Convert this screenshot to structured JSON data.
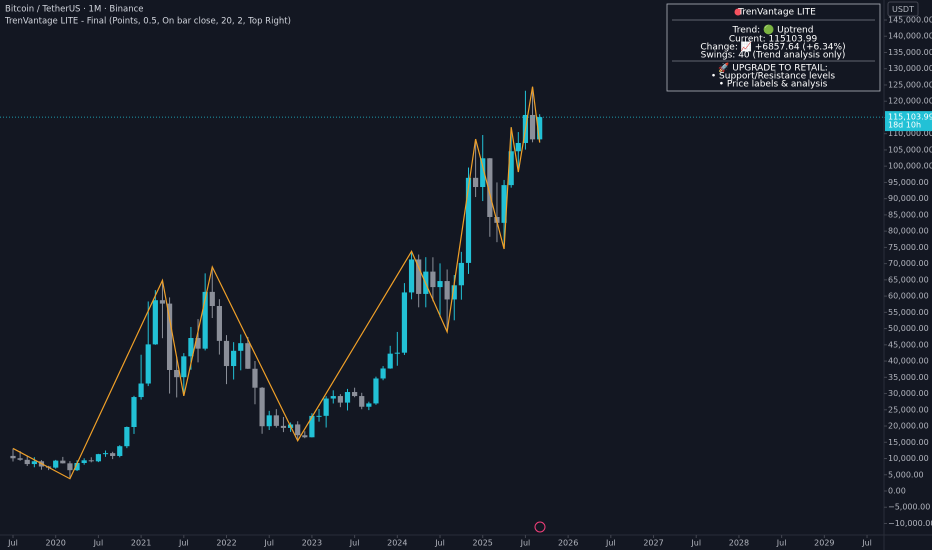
{
  "header": {
    "symbol": "Bitcoin / TetherUS · 1M · Binance",
    "indicator": "TrenVantage LITE - Final (Points, 0.5, On bar close, 20, 2, Top Right)"
  },
  "panel": {
    "title": "TrenVantage LITE",
    "trend": "Trend: 🟢 Uptrend",
    "current": "Current: 115103.99",
    "change": "Change: 📈 +6857.64 (+6.34%)",
    "swings": "Swings: 40 (Trend analysis only)",
    "upgrade": "🚀 UPGRADE TO RETAIL:",
    "feature1": "• Support/Resistance levels",
    "feature2": "• Price labels & analysis"
  },
  "chart_data": {
    "type": "candlestick",
    "currency": "USDT",
    "up_color": "#22c1d6",
    "down_color": "#8b8f99",
    "x": [
      "2019-07",
      "2019-08",
      "2019-09",
      "2019-10",
      "2019-11",
      "2019-12",
      "2020-01",
      "2020-02",
      "2020-03",
      "2020-04",
      "2020-05",
      "2020-06",
      "2020-07",
      "2020-08",
      "2020-09",
      "2020-10",
      "2020-11",
      "2020-12",
      "2021-01",
      "2021-02",
      "2021-03",
      "2021-04",
      "2021-05",
      "2021-06",
      "2021-07",
      "2021-08",
      "2021-09",
      "2021-10",
      "2021-11",
      "2021-12",
      "2022-01",
      "2022-02",
      "2022-03",
      "2022-04",
      "2022-05",
      "2022-06",
      "2022-07",
      "2022-08",
      "2022-09",
      "2022-10",
      "2022-11",
      "2022-12",
      "2023-01",
      "2023-02",
      "2023-03",
      "2023-04",
      "2023-05",
      "2023-06",
      "2023-07",
      "2023-08",
      "2023-09",
      "2023-10",
      "2023-11",
      "2023-12",
      "2024-01",
      "2024-02",
      "2024-03",
      "2024-04",
      "2024-05",
      "2024-06",
      "2024-07",
      "2024-08",
      "2024-09",
      "2024-10",
      "2024-11",
      "2024-12",
      "2025-01",
      "2025-02",
      "2025-03",
      "2025-04",
      "2025-05",
      "2025-06",
      "2025-07",
      "2025-08",
      "2025-09"
    ],
    "open": [
      10800,
      10080,
      9600,
      8290,
      9150,
      7540,
      7190,
      9350,
      8520,
      6410,
      8620,
      9450,
      9140,
      11350,
      11650,
      10780,
      13790,
      19700,
      28920,
      33090,
      45140,
      58740,
      57690,
      37250,
      35040,
      41460,
      47100,
      43820,
      61300,
      56950,
      46210,
      38470,
      43160,
      45510,
      37630,
      31800,
      19940,
      23290,
      20050,
      19420,
      20490,
      17160,
      16540,
      23120,
      23140,
      28470,
      29230,
      27210,
      30470,
      29230,
      25940,
      26960,
      34640,
      37720,
      42280,
      42580,
      61130,
      71280,
      60670,
      67540,
      62770,
      64630,
      58970,
      63330,
      70220,
      96410,
      93580,
      102430,
      84350,
      82550,
      94170,
      104590,
      107140,
      115760,
      108250
    ],
    "high": [
      13100,
      12300,
      10900,
      10400,
      9500,
      7750,
      9580,
      10500,
      9190,
      9460,
      10070,
      10380,
      11450,
      12470,
      12070,
      14100,
      19860,
      29300,
      41950,
      58350,
      61840,
      64850,
      59600,
      41330,
      42450,
      50500,
      52920,
      67000,
      69000,
      59050,
      47990,
      45820,
      48190,
      47440,
      40020,
      31980,
      24670,
      25210,
      22800,
      21090,
      21470,
      18390,
      23960,
      25250,
      29180,
      31000,
      29820,
      31430,
      31800,
      30230,
      27490,
      35200,
      38450,
      44700,
      48970,
      64000,
      73780,
      72800,
      71980,
      71950,
      70080,
      68200,
      66500,
      73620,
      99590,
      108350,
      109590,
      102500,
      95000,
      95760,
      111980,
      110500,
      123220,
      124470,
      116000
    ],
    "low": [
      9100,
      9300,
      7700,
      7300,
      6550,
      6430,
      6870,
      8450,
      3780,
      6150,
      8100,
      8830,
      8890,
      10520,
      9820,
      10370,
      13200,
      17570,
      28130,
      32300,
      45000,
      47040,
      30000,
      28800,
      29280,
      37330,
      39600,
      43280,
      53250,
      42000,
      32900,
      34320,
      37150,
      37580,
      26700,
      17620,
      18780,
      19520,
      18130,
      18190,
      15480,
      16260,
      16500,
      21350,
      19550,
      26940,
      25810,
      24800,
      28860,
      25170,
      24900,
      26540,
      34100,
      37630,
      38560,
      41880,
      59000,
      56550,
      56550,
      58400,
      53500,
      49000,
      52550,
      58900,
      66830,
      90500,
      89260,
      78260,
      76600,
      74500,
      93380,
      98200,
      105100,
      107350,
      107270
    ],
    "close": [
      10080,
      9600,
      8290,
      9150,
      7540,
      7190,
      9350,
      8520,
      6410,
      8620,
      9450,
      9140,
      11350,
      11650,
      10780,
      13790,
      19700,
      28920,
      33090,
      45140,
      58740,
      57690,
      37250,
      35040,
      41460,
      47100,
      43820,
      61300,
      56950,
      46210,
      38470,
      43160,
      45510,
      37630,
      31800,
      19940,
      23290,
      20050,
      19420,
      20490,
      17160,
      16540,
      23120,
      23140,
      28470,
      29230,
      27210,
      30470,
      29230,
      25940,
      26960,
      34640,
      37720,
      42280,
      42580,
      61130,
      71280,
      60670,
      67540,
      62770,
      64630,
      58970,
      63330,
      70220,
      96410,
      93580,
      102430,
      84350,
      82550,
      94170,
      104590,
      107140,
      115760,
      108250,
      115103.99
    ],
    "swings": {
      "color": "#f0a028",
      "x": [
        "2019-07",
        "2020-03",
        "2021-04",
        "2021-07",
        "2021-11",
        "2022-11",
        "2024-03",
        "2024-08",
        "2024-12",
        "2025-04",
        "2025-05",
        "2025-06",
        "2025-08",
        "2025-09"
      ],
      "values": [
        13100,
        3780,
        64850,
        29280,
        69000,
        15480,
        73780,
        49000,
        108350,
        74500,
        111980,
        98200,
        124470,
        107270
      ]
    },
    "last_price": {
      "value": 115103.99,
      "label": "115,103.99"
    },
    "countdown": "18d 10h",
    "ylim": [
      -13546,
      151157
    ],
    "yticks": [
      {
        "value": 145000,
        "label": "145,000.00"
      },
      {
        "value": 140000,
        "label": "140,000.00"
      },
      {
        "value": 135000,
        "label": "135,000.00"
      },
      {
        "value": 130000,
        "label": "130,000.00"
      },
      {
        "value": 125000,
        "label": "125,000.00"
      },
      {
        "value": 120000,
        "label": "120,000.00"
      },
      {
        "value": 115000,
        "label": "115,000.00"
      },
      {
        "value": 110000,
        "label": "110,000.00"
      },
      {
        "value": 105000,
        "label": "105,000.00"
      },
      {
        "value": 100000,
        "label": "100,000.00"
      },
      {
        "value": 95000,
        "label": "95,000.00"
      },
      {
        "value": 90000,
        "label": "90,000.00"
      },
      {
        "value": 85000,
        "label": "85,000.00"
      },
      {
        "value": 80000,
        "label": "80,000.00"
      },
      {
        "value": 75000,
        "label": "75,000.00"
      },
      {
        "value": 70000,
        "label": "70,000.00"
      },
      {
        "value": 65000,
        "label": "65,000.00"
      },
      {
        "value": 60000,
        "label": "60,000.00"
      },
      {
        "value": 55000,
        "label": "55,000.00"
      },
      {
        "value": 50000,
        "label": "50,000.00"
      },
      {
        "value": 45000,
        "label": "45,000.00"
      },
      {
        "value": 40000,
        "label": "40,000.00"
      },
      {
        "value": 35000,
        "label": "35,000.00"
      },
      {
        "value": 30000,
        "label": "30,000.00"
      },
      {
        "value": 25000,
        "label": "25,000.00"
      },
      {
        "value": 20000,
        "label": "20,000.00"
      },
      {
        "value": 15000,
        "label": "15,000.00"
      },
      {
        "value": 10000,
        "label": "10,000.00"
      },
      {
        "value": 5000,
        "label": "5,000.00"
      },
      {
        "value": 0,
        "label": "0.00"
      },
      {
        "value": -5000,
        "label": "−5,000.00"
      },
      {
        "value": -10000,
        "label": "−10,000.00"
      }
    ],
    "xticks": [
      {
        "value": "2019-07",
        "label": "Jul"
      },
      {
        "value": "2020-01",
        "label": "2020"
      },
      {
        "value": "2020-07",
        "label": "Jul"
      },
      {
        "value": "2021-01",
        "label": "2021"
      },
      {
        "value": "2021-07",
        "label": "Jul"
      },
      {
        "value": "2022-01",
        "label": "2022"
      },
      {
        "value": "2022-07",
        "label": "Jul"
      },
      {
        "value": "2023-01",
        "label": "2023"
      },
      {
        "value": "2023-07",
        "label": "Jul"
      },
      {
        "value": "2024-01",
        "label": "2024"
      },
      {
        "value": "2024-07",
        "label": "Jul"
      },
      {
        "value": "2025-01",
        "label": "2025"
      },
      {
        "value": "2025-07",
        "label": "Jul"
      },
      {
        "value": "2026-01",
        "label": "2026"
      },
      {
        "value": "2026-07",
        "label": "Jul"
      },
      {
        "value": "2027-01",
        "label": "2027"
      },
      {
        "value": "2027-07",
        "label": "Jul"
      },
      {
        "value": "2028-01",
        "label": "2028"
      },
      {
        "value": "2028-07",
        "label": "Jul"
      },
      {
        "value": "2029-01",
        "label": "2029"
      },
      {
        "value": "2029-07",
        "label": "Jul"
      }
    ]
  }
}
